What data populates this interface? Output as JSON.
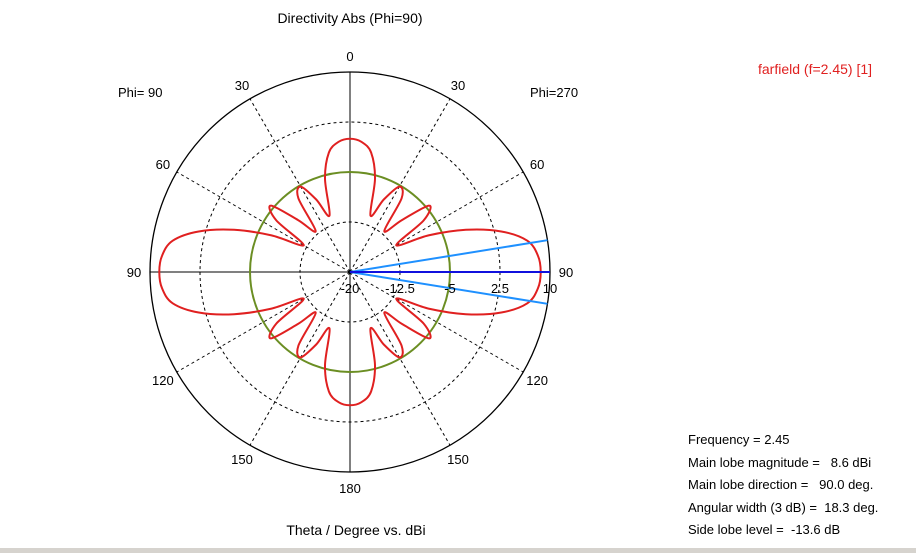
{
  "title": "Directivity Abs (Phi=90)",
  "xlabel": "Theta / Degree vs. dBi",
  "phi_left_label": "Phi= 90",
  "phi_right_label": "Phi=270",
  "legend": "farfield (f=2.45) [1]",
  "stats": [
    "Frequency = 2.45",
    "Main lobe magnitude =   8.6 dBi",
    "Main lobe direction =   90.0 deg.",
    "Angular width (3 dB) =  18.3 deg.",
    "Side lobe level =  -13.6 dB"
  ],
  "colors": {
    "pattern": "#e02020",
    "reference_circle": "#6b8e23",
    "main_lobe_axis": "#1010dd",
    "beamwidth_lines": "#1e90ff"
  },
  "chart_data": {
    "type": "polar",
    "title": "Directivity Abs (Phi=90)",
    "xlabel": "Theta / Degree vs. dBi",
    "rlim": [
      -20,
      10
    ],
    "radial_ticks": [
      "-20",
      "-12.5",
      "-5",
      "2.5",
      "10"
    ],
    "angle_ticks": [
      {
        "angle": 0,
        "label": "0"
      },
      {
        "angle": 30,
        "label": "30"
      },
      {
        "angle": 60,
        "label": "60"
      },
      {
        "angle": 90,
        "label": "90"
      },
      {
        "angle": 120,
        "label": "120"
      },
      {
        "angle": 150,
        "label": "150"
      },
      {
        "angle": 180,
        "label": "180"
      },
      {
        "angle": 210,
        "label": "150"
      },
      {
        "angle": 240,
        "label": "120"
      },
      {
        "angle": 270,
        "label": "90"
      },
      {
        "angle": 300,
        "label": "60"
      },
      {
        "angle": 330,
        "label": "30"
      }
    ],
    "grid": true,
    "legend_position": "top-right",
    "series": [
      {
        "name": "farfield (f=2.45) [1]",
        "theta_deg": [
          0,
          5,
          10,
          15,
          20,
          25,
          30,
          35,
          40,
          45,
          50,
          55,
          60,
          65,
          70,
          75,
          80,
          85,
          90,
          95,
          100,
          105,
          110,
          115,
          120,
          125,
          130,
          135,
          140,
          145,
          150,
          155,
          160,
          165,
          170,
          175,
          180
        ],
        "directivity_dbi": [
          0,
          -0.4,
          -1.8,
          -5.5,
          -11,
          -8,
          -5.2,
          -6.5,
          -12,
          -9,
          -4.5,
          -6.5,
          -12,
          -7,
          -1.5,
          3.5,
          7,
          8.3,
          8.6,
          8.3,
          7,
          3.5,
          -1.5,
          -7,
          -12,
          -6.5,
          -4.5,
          -9,
          -12,
          -6.5,
          -5.2,
          -8,
          -11,
          -5.5,
          -1.8,
          -0.4,
          0
        ]
      }
    ],
    "reference_circle_dbi": -5,
    "main_lobe_direction_deg": 90,
    "beamwidth_deg": 18.3
  }
}
